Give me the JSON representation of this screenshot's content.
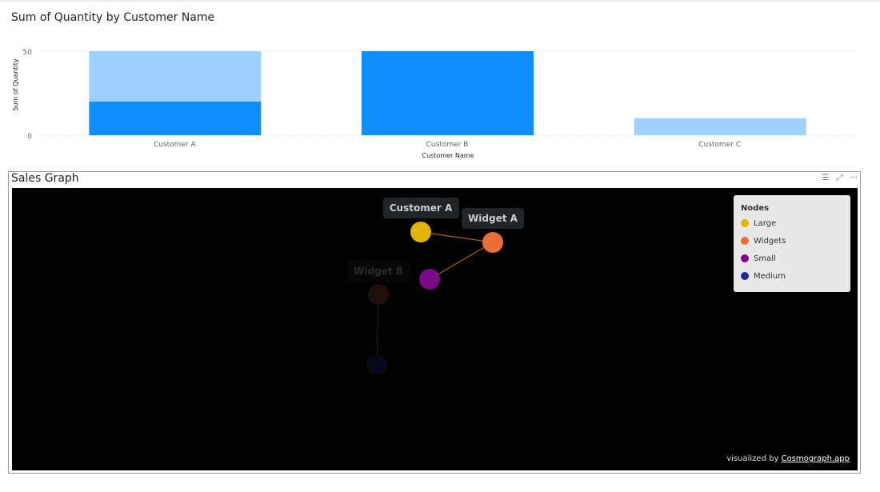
{
  "chart_data": {
    "type": "bar",
    "stacked": true,
    "title": "Sum of Quantity by Customer Name",
    "xlabel": "Customer Name",
    "ylabel": "Sum of Quantity",
    "categories": [
      "Customer A",
      "Customer B",
      "Customer C"
    ],
    "yticks": [
      "0",
      "50"
    ],
    "ylim": [
      0,
      50
    ],
    "grid": true,
    "series": [
      {
        "values": [
          20,
          50,
          0
        ],
        "color": "#118dff"
      },
      {
        "values": [
          30,
          0,
          10
        ],
        "color": "#9fd1ff"
      }
    ]
  },
  "graph": {
    "title": "Sales Graph",
    "icons": [
      "filter-icon",
      "focus-mode-icon",
      "more-options-icon"
    ],
    "labels": {
      "customer_a": "Customer A",
      "widget_a": "Widget A",
      "widget_b": "Widget B"
    },
    "legend": {
      "title": "Nodes",
      "items": [
        {
          "label": "Large",
          "color": "#e0b400"
        },
        {
          "label": "Widgets",
          "color": "#ea6e3a"
        },
        {
          "label": "Small",
          "color": "#7a0a8a"
        },
        {
          "label": "Medium",
          "color": "#1a2aa0"
        }
      ]
    },
    "credit_prefix": "visualized by ",
    "credit_link": "Cosmograph.app"
  }
}
